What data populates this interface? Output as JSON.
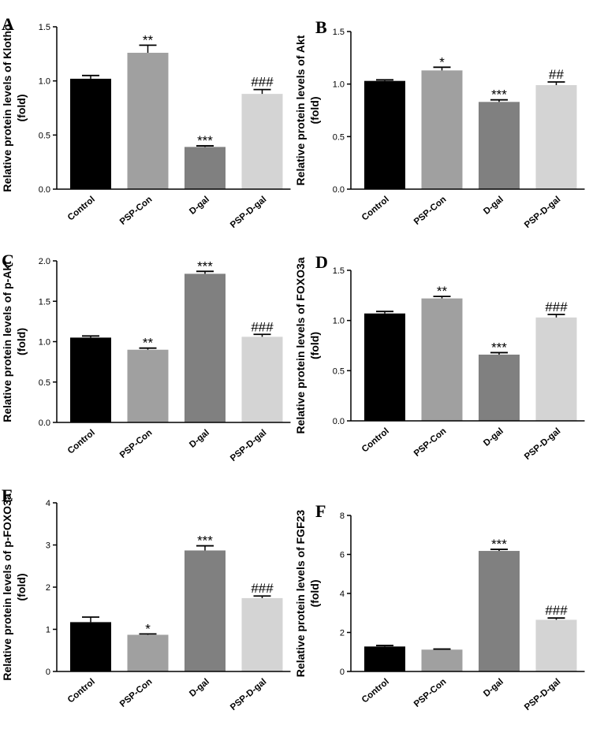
{
  "chart_data": [
    {
      "type": "bar",
      "panel": "A",
      "categories": [
        "Control",
        "PSP-Con",
        "D-gal",
        "PSP-D-gal"
      ],
      "values": [
        1.02,
        1.26,
        0.39,
        0.88
      ],
      "errors": [
        0.03,
        0.07,
        0.01,
        0.04
      ],
      "significance": [
        "",
        "**",
        "***",
        "###"
      ],
      "ylabel_line1": "Relative protein levels of Klotho",
      "ylabel_line2": "(fold)",
      "ylim": [
        0,
        1.5
      ],
      "yticks": [
        "0.0",
        "0.5",
        "1.0",
        "1.5"
      ],
      "colors": [
        "#000000",
        "#a0a0a0",
        "#808080",
        "#d4d4d4"
      ]
    },
    {
      "type": "bar",
      "panel": "B",
      "categories": [
        "Control",
        "PSP-Con",
        "D-gal",
        "PSP-D-gal"
      ],
      "values": [
        1.03,
        1.13,
        0.83,
        0.99
      ],
      "errors": [
        0.01,
        0.03,
        0.02,
        0.03
      ],
      "significance": [
        "",
        "*",
        "***",
        "##"
      ],
      "ylabel_line1": "Relative protein levels of Akt",
      "ylabel_line2": "(fold)",
      "ylim": [
        0,
        1.5
      ],
      "yticks": [
        "0.0",
        "0.5",
        "1.0",
        "1.5"
      ],
      "colors": [
        "#000000",
        "#a0a0a0",
        "#808080",
        "#d4d4d4"
      ]
    },
    {
      "type": "bar",
      "panel": "C",
      "categories": [
        "Control",
        "PSP-Con",
        "D-gal",
        "PSP-D-gal"
      ],
      "values": [
        1.05,
        0.9,
        1.84,
        1.06
      ],
      "errors": [
        0.02,
        0.02,
        0.03,
        0.03
      ],
      "significance": [
        "",
        "**",
        "***",
        "###"
      ],
      "ylabel_line1": "Relative protein levels of p-Akt",
      "ylabel_line2": "(fold)",
      "ylim": [
        0,
        2.0
      ],
      "yticks": [
        "0.0",
        "0.5",
        "1.0",
        "1.5",
        "2.0"
      ],
      "colors": [
        "#000000",
        "#a0a0a0",
        "#808080",
        "#d4d4d4"
      ]
    },
    {
      "type": "bar",
      "panel": "D",
      "categories": [
        "Control",
        "PSP-Con",
        "D-gal",
        "PSP-D-gal"
      ],
      "values": [
        1.07,
        1.22,
        0.66,
        1.03
      ],
      "errors": [
        0.02,
        0.02,
        0.02,
        0.03
      ],
      "significance": [
        "",
        "**",
        "***",
        "###"
      ],
      "ylabel_line1": "Relative protein levels of FOXO3a",
      "ylabel_line2": "(fold)",
      "ylim": [
        0,
        1.5
      ],
      "yticks": [
        "0.0",
        "0.5",
        "1.0",
        "1.5"
      ],
      "colors": [
        "#000000",
        "#a0a0a0",
        "#808080",
        "#d4d4d4"
      ]
    },
    {
      "type": "bar",
      "panel": "E",
      "categories": [
        "Control",
        "PSP-Con",
        "D-gal",
        "PSP-D-gal"
      ],
      "values": [
        1.17,
        0.87,
        2.87,
        1.74
      ],
      "errors": [
        0.12,
        0.02,
        0.11,
        0.05
      ],
      "significance": [
        "",
        "*",
        "***",
        "###"
      ],
      "ylabel_line1": "Relative protein levels of p-FOXO3a",
      "ylabel_line2": "(fold)",
      "ylim": [
        0,
        4
      ],
      "yticks": [
        "0",
        "1",
        "2",
        "3",
        "4"
      ],
      "colors": [
        "#000000",
        "#a0a0a0",
        "#808080",
        "#d4d4d4"
      ]
    },
    {
      "type": "bar",
      "panel": "F",
      "categories": [
        "Control",
        "PSP-Con",
        "D-gal",
        "PSP-D-gal"
      ],
      "values": [
        1.28,
        1.12,
        6.18,
        2.65
      ],
      "errors": [
        0.05,
        0.03,
        0.08,
        0.09
      ],
      "significance": [
        "",
        "",
        "***",
        "###"
      ],
      "ylabel_line1": "Relative protein levels of FGF23",
      "ylabel_line2": "(fold)",
      "ylim": [
        0,
        8
      ],
      "yticks": [
        "0",
        "2",
        "4",
        "6",
        "8"
      ],
      "colors": [
        "#000000",
        "#a0a0a0",
        "#808080",
        "#d4d4d4"
      ]
    }
  ]
}
